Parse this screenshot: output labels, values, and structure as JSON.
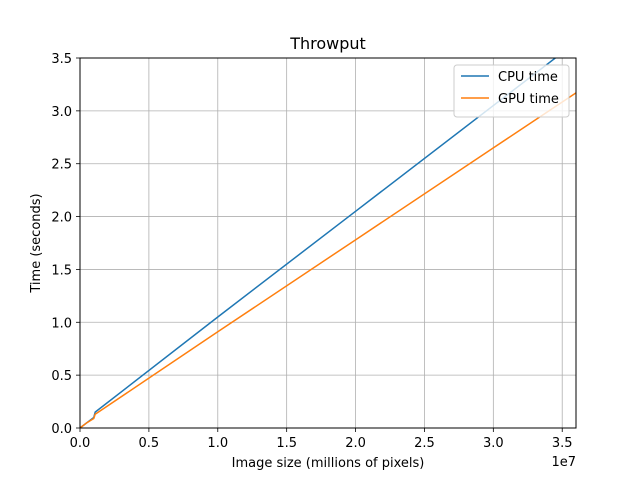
{
  "chart_data": {
    "type": "line",
    "title": "Throwput",
    "xlabel": "Image size (millions of pixels)",
    "ylabel": "Time (seconds)",
    "x_offset_label": "1e7",
    "xlim": [
      0,
      36000000
    ],
    "ylim": [
      0,
      3.5
    ],
    "xticks": [
      0,
      5000000,
      10000000,
      15000000,
      20000000,
      25000000,
      30000000,
      35000000
    ],
    "xtick_labels": [
      "0.0",
      "0.5",
      "1.0",
      "1.5",
      "2.0",
      "2.5",
      "3.0",
      "3.5"
    ],
    "yticks": [
      0,
      0.5,
      1.0,
      1.5,
      2.0,
      2.5,
      3.0,
      3.5
    ],
    "ytick_labels": [
      "0.0",
      "0.5",
      "1.0",
      "1.5",
      "2.0",
      "2.5",
      "3.0",
      "3.5"
    ],
    "grid": true,
    "legend_position": "top-right",
    "series": [
      {
        "name": "CPU time",
        "color": "#1f77b4",
        "x": [
          0,
          500000,
          1000000,
          1100000,
          10000000,
          20000000,
          30000000,
          36000000
        ],
        "y": [
          0.0,
          0.05,
          0.1,
          0.15,
          1.05,
          2.05,
          3.05,
          3.65
        ]
      },
      {
        "name": "GPU time",
        "color": "#ff7f0e",
        "x": [
          0,
          500000,
          1000000,
          1100000,
          10000000,
          20000000,
          30000000,
          36000000
        ],
        "y": [
          0.0,
          0.05,
          0.09,
          0.13,
          0.91,
          1.78,
          2.65,
          3.17
        ]
      }
    ]
  }
}
